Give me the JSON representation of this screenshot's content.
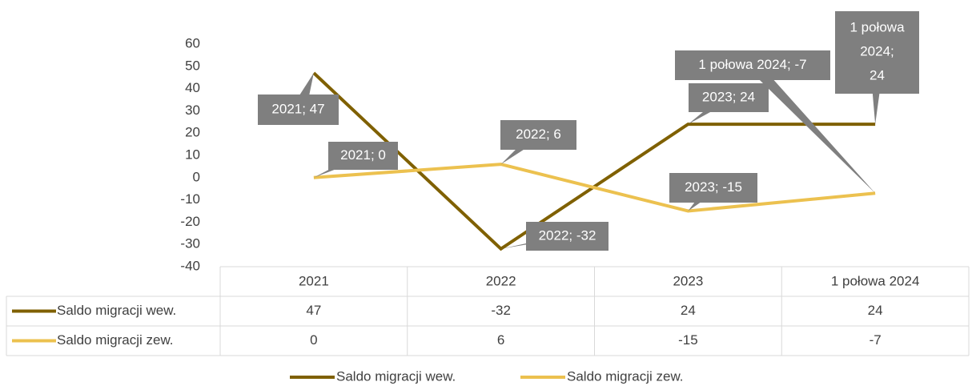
{
  "chart_data": {
    "type": "line",
    "categories": [
      "2021",
      "2022",
      "2023",
      "1 połowa 2024"
    ],
    "series": [
      {
        "name": "Saldo migracji wew.",
        "color": "#7f6000",
        "values": [
          47,
          -32,
          24,
          24
        ],
        "value_labels": [
          "2021; 47",
          "2022; -32",
          "2023; 24",
          "1 połowa 2024; 24"
        ]
      },
      {
        "name": "Saldo migracji zew.",
        "color": "#ecc14f",
        "values": [
          0,
          6,
          -15,
          -7
        ],
        "value_labels": [
          "2021; 0",
          "2022; 6",
          "2023; -15",
          "1 połowa 2024; -7"
        ]
      }
    ],
    "ylim": [
      -40,
      60
    ],
    "yticks": [
      -40,
      -30,
      -20,
      -10,
      0,
      10,
      20,
      30,
      40,
      50,
      60
    ],
    "grid": false,
    "legend": "bottom",
    "data_table": true
  }
}
